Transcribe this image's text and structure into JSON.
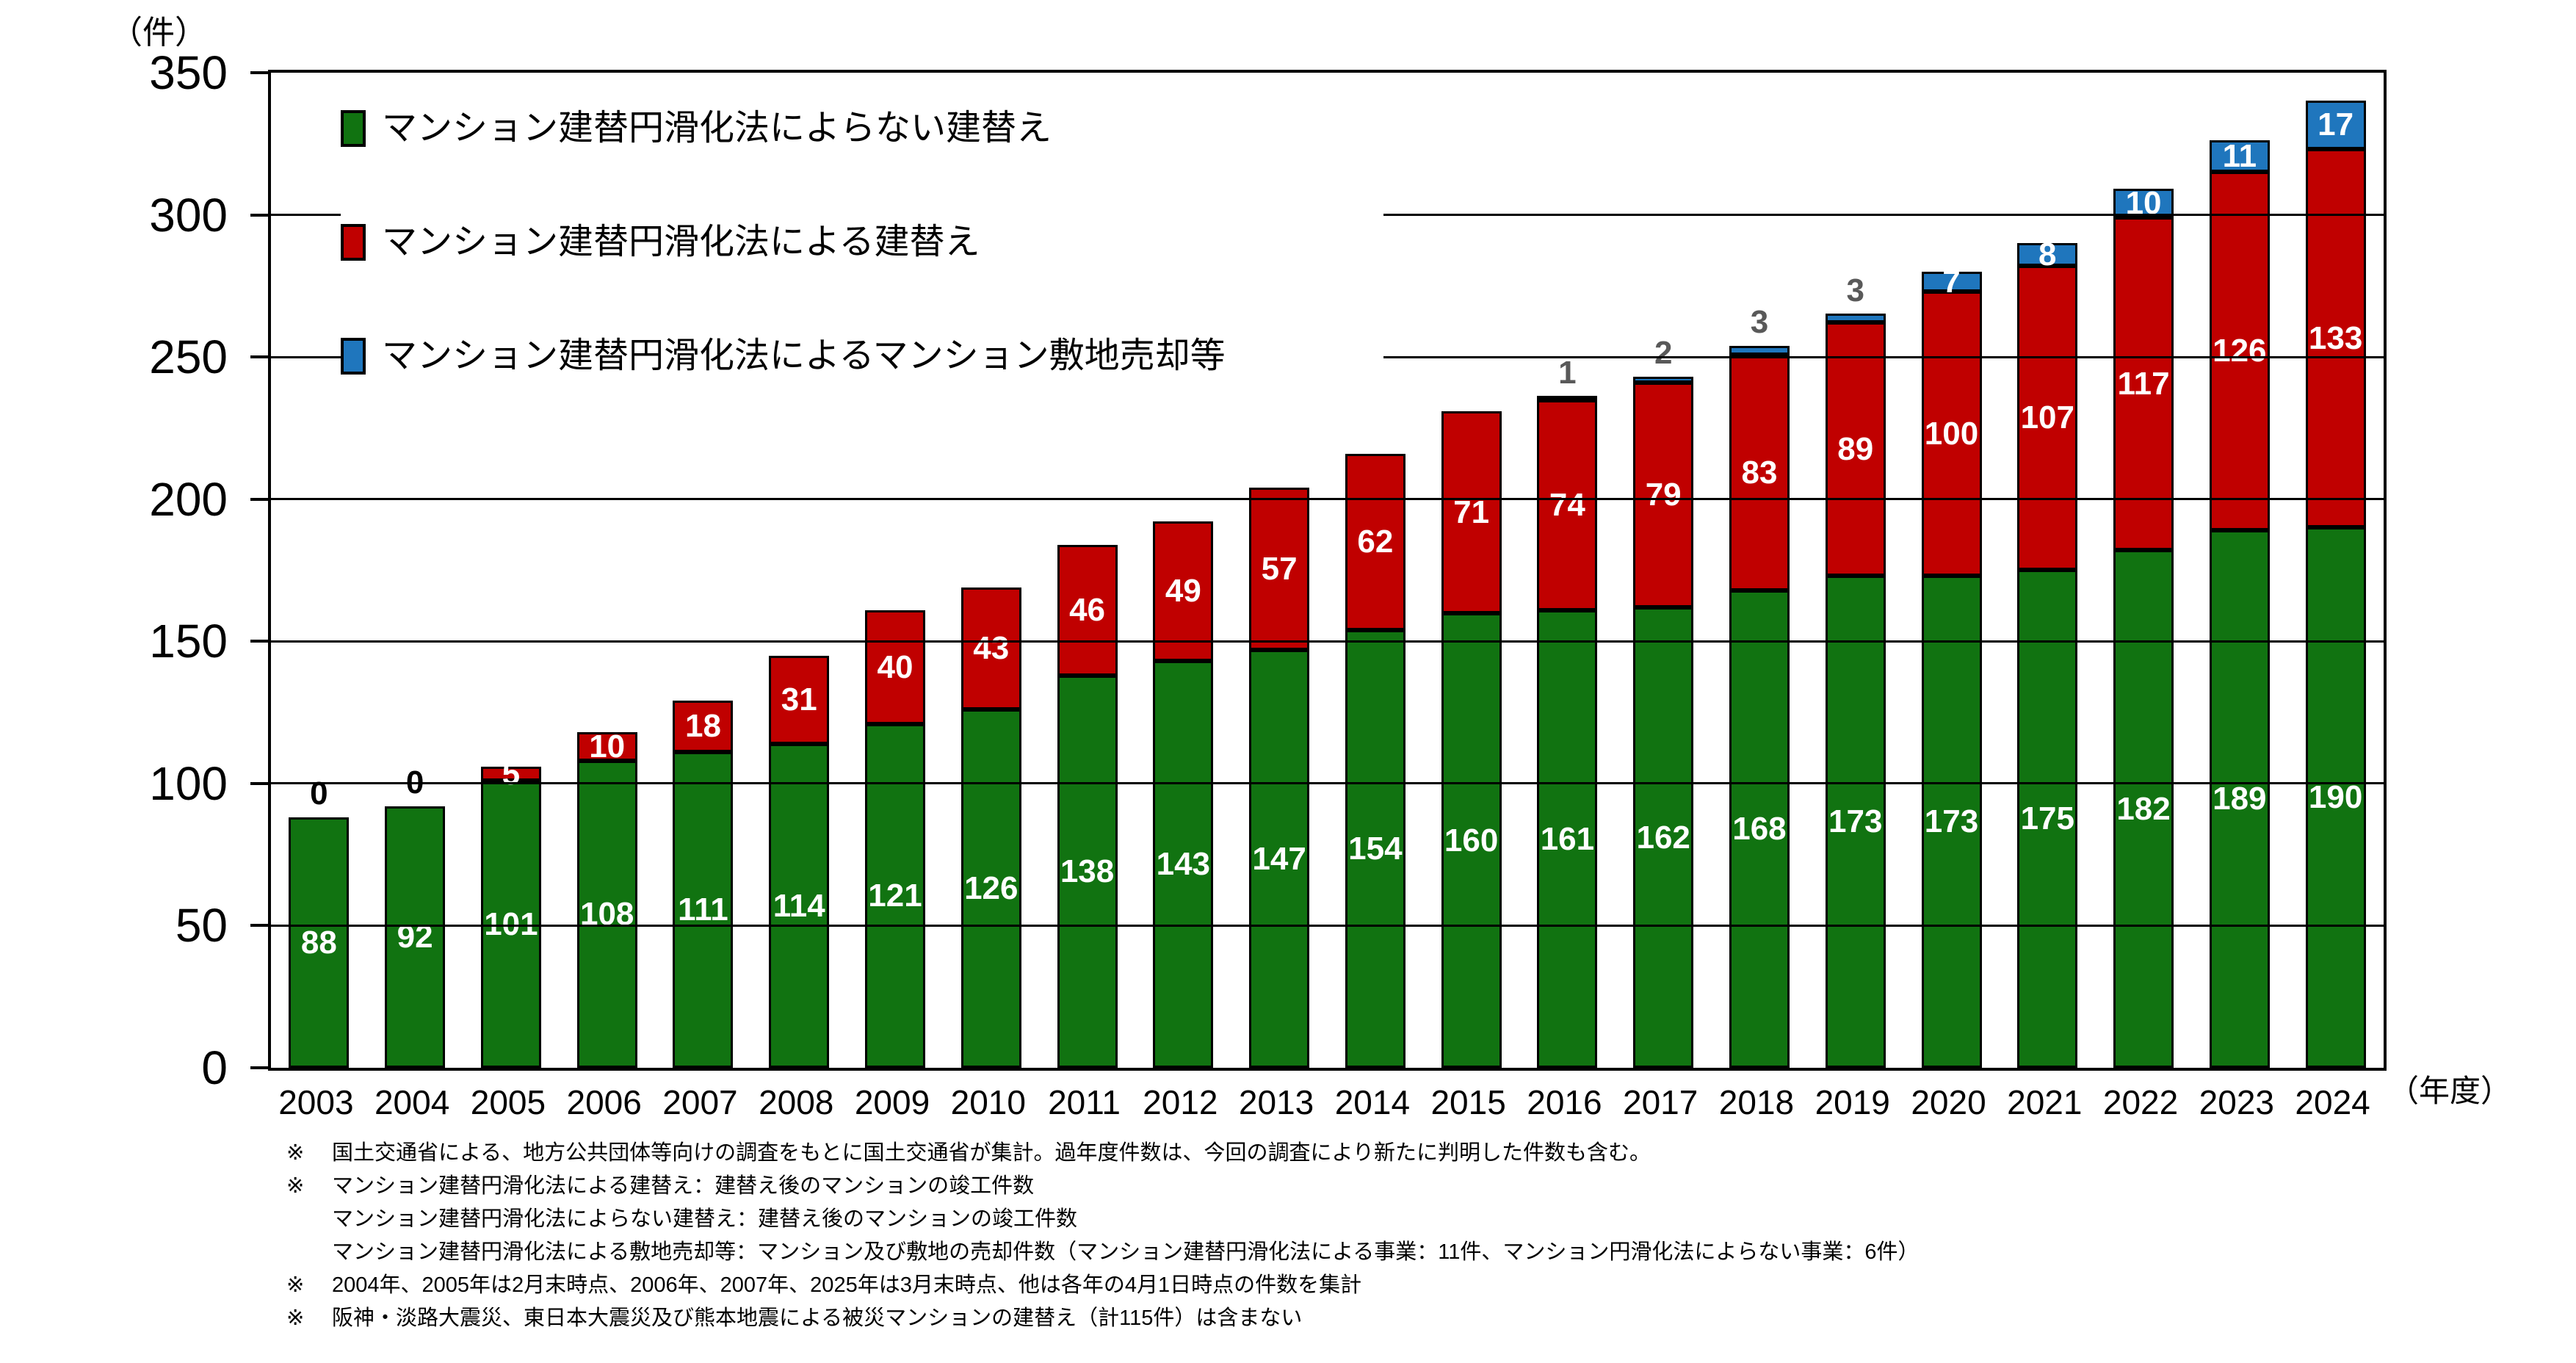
{
  "figure": {
    "y_axis_unit": "（件）",
    "x_axis_unit": "（年度）"
  },
  "colors": {
    "axis": "#000000",
    "inside_label": "#FFFFFF",
    "green_series": "#117311",
    "red_series": "#C00000",
    "blue_series": "#1F76BD",
    "zero_label": "#000000",
    "small_blue_label": "#595959"
  },
  "chart_data": {
    "type": "bar",
    "stacked": true,
    "title": "",
    "xlabel": "（年度）",
    "ylabel": "（件）",
    "ylim": [
      0,
      350
    ],
    "yticks": [
      0,
      50,
      100,
      150,
      200,
      250,
      300,
      350
    ],
    "grid": "horizontal every 50, drawn over bars",
    "legend_position": "top-left inside plot area",
    "categories": [
      "2003",
      "2004",
      "2005",
      "2006",
      "2007",
      "2008",
      "2009",
      "2010",
      "2011",
      "2012",
      "2013",
      "2014",
      "2015",
      "2016",
      "2017",
      "2018",
      "2019",
      "2020",
      "2021",
      "2022",
      "2023",
      "2024"
    ],
    "series": [
      {
        "name": "マンション建替円滑化法によらない建替え",
        "color": "#117311",
        "values": [
          88,
          92,
          101,
          108,
          111,
          114,
          121,
          126,
          138,
          143,
          147,
          154,
          160,
          161,
          162,
          168,
          173,
          173,
          175,
          182,
          189,
          190
        ],
        "label_positions": [
          "inside",
          "inside",
          "inside",
          "inside",
          "inside",
          "inside",
          "inside",
          "inside",
          "inside",
          "inside",
          "inside",
          "inside",
          "inside",
          "inside",
          "inside",
          "inside",
          "inside",
          "inside",
          "inside",
          "inside",
          "inside",
          "inside"
        ],
        "above_label_color": "#000000"
      },
      {
        "name": "マンション建替円滑化法による建替え",
        "color": "#C00000",
        "values": [
          0,
          0,
          5,
          10,
          18,
          31,
          40,
          43,
          46,
          49,
          57,
          62,
          71,
          74,
          79,
          83,
          89,
          100,
          107,
          117,
          126,
          133
        ],
        "label_positions": [
          "above",
          "above",
          "inside",
          "inside",
          "inside",
          "inside",
          "inside",
          "inside",
          "inside",
          "inside",
          "inside",
          "inside",
          "inside",
          "inside",
          "inside",
          "inside",
          "inside",
          "inside",
          "inside",
          "inside",
          "inside",
          "inside"
        ],
        "above_label_color": "#000000"
      },
      {
        "name": "マンション建替円滑化法によるマンション敷地売却等",
        "color": "#1F76BD",
        "values": [
          0,
          0,
          0,
          0,
          0,
          0,
          0,
          0,
          0,
          0,
          0,
          0,
          0,
          1,
          2,
          3,
          3,
          7,
          8,
          10,
          11,
          17
        ],
        "label_positions": [
          "none",
          "none",
          "none",
          "none",
          "none",
          "none",
          "none",
          "none",
          "none",
          "none",
          "none",
          "none",
          "none",
          "above",
          "above",
          "above",
          "above",
          "inside",
          "inside",
          "inside",
          "inside",
          "inside"
        ],
        "above_label_color": "#595959"
      }
    ]
  },
  "footnotes": [
    {
      "marker": "※",
      "text": "国土交通省による、地方公共団体等向けの調査をもとに国土交通省が集計。過年度件数は、今回の調査により新たに判明した件数も含む。"
    },
    {
      "marker": "※",
      "text": "マンション建替円滑化法による建替え：建替え後のマンションの竣工件数"
    },
    {
      "marker": "",
      "text": "マンション建替円滑化法によらない建替え：建替え後のマンションの竣工件数"
    },
    {
      "marker": "",
      "text": "マンション建替円滑化法による敷地売却等：マンション及び敷地の売却件数（マンション建替円滑化法による事業：11件、マンション円滑化法によらない事業：6件）"
    },
    {
      "marker": "※",
      "text": "2004年、2005年は2月末時点、2006年、2007年、2025年は3月末時点、他は各年の4月1日時点の件数を集計"
    },
    {
      "marker": "※",
      "text": "阪神・淡路大震災、東日本大震災及び熊本地震による被災マンションの建替え（計115件）は含まない"
    }
  ]
}
